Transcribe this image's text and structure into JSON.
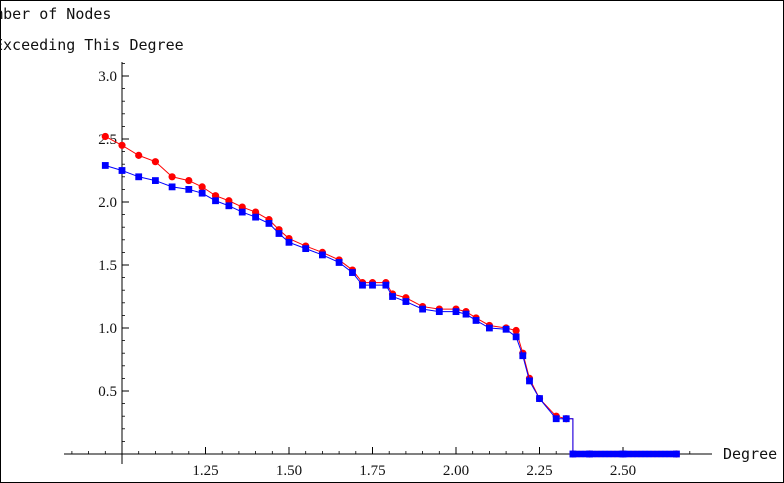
{
  "chart_data": {
    "type": "scatter",
    "title_lines": [
      "Number of Nodes",
      "Exceeding This Degree"
    ],
    "xlabel": "Degree",
    "ylabel": "",
    "xlim": [
      1.0,
      2.7
    ],
    "ylim": [
      0.0,
      3.05
    ],
    "x_ticks": [
      1.25,
      1.5,
      1.75,
      2.0,
      2.25,
      2.5
    ],
    "x_tick_labels": [
      "1.25",
      "1.50",
      "1.75",
      "2.00",
      "2.25",
      "2.50"
    ],
    "x_minor_step": 0.05,
    "y_ticks": [
      0.5,
      1.0,
      1.5,
      2.0,
      2.5,
      3.0
    ],
    "y_tick_labels": [
      "0.5",
      "1.0",
      "1.5",
      "2.0",
      "2.5",
      "3.0"
    ],
    "y_minor_step": 0.1,
    "grid": false,
    "legend": "none",
    "series": [
      {
        "color": "#ff0000",
        "marker": "circle",
        "x": [
          0.95,
          1.0,
          1.05,
          1.1,
          1.15,
          1.2,
          1.24,
          1.28,
          1.32,
          1.36,
          1.4,
          1.44,
          1.47,
          1.5,
          1.55,
          1.6,
          1.65,
          1.69,
          1.72,
          1.75,
          1.79,
          1.81,
          1.85,
          1.9,
          1.95,
          2.0,
          2.03,
          2.06,
          2.1,
          2.15,
          2.18,
          2.2,
          2.22,
          2.25,
          2.3,
          2.33,
          2.35,
          2.4,
          2.5,
          2.66
        ],
        "y": [
          2.52,
          2.45,
          2.37,
          2.32,
          2.2,
          2.17,
          2.12,
          2.05,
          2.01,
          1.96,
          1.92,
          1.86,
          1.78,
          1.71,
          1.65,
          1.6,
          1.54,
          1.46,
          1.36,
          1.36,
          1.36,
          1.27,
          1.24,
          1.17,
          1.15,
          1.15,
          1.13,
          1.08,
          1.02,
          1.0,
          0.98,
          0.8,
          0.6,
          0.44,
          0.3,
          0.28,
          0.0,
          0.0,
          0.0,
          0.0
        ]
      },
      {
        "color": "#0000ff",
        "marker": "square",
        "x": [
          0.95,
          1.0,
          1.05,
          1.1,
          1.15,
          1.2,
          1.24,
          1.28,
          1.32,
          1.36,
          1.4,
          1.44,
          1.47,
          1.5,
          1.55,
          1.6,
          1.65,
          1.69,
          1.72,
          1.75,
          1.79,
          1.81,
          1.85,
          1.9,
          1.95,
          2.0,
          2.03,
          2.06,
          2.1,
          2.15,
          2.18,
          2.2,
          2.22,
          2.25,
          2.3,
          2.33,
          2.35,
          2.4,
          2.5,
          2.66
        ],
        "y": [
          2.29,
          2.25,
          2.2,
          2.17,
          2.12,
          2.1,
          2.07,
          2.01,
          1.97,
          1.92,
          1.88,
          1.83,
          1.75,
          1.68,
          1.63,
          1.58,
          1.52,
          1.44,
          1.34,
          1.34,
          1.34,
          1.25,
          1.21,
          1.15,
          1.13,
          1.13,
          1.11,
          1.06,
          1.0,
          0.99,
          0.93,
          0.78,
          0.58,
          0.44,
          0.28,
          0.28,
          0.0,
          0.0,
          0.0,
          0.0
        ]
      }
    ]
  }
}
